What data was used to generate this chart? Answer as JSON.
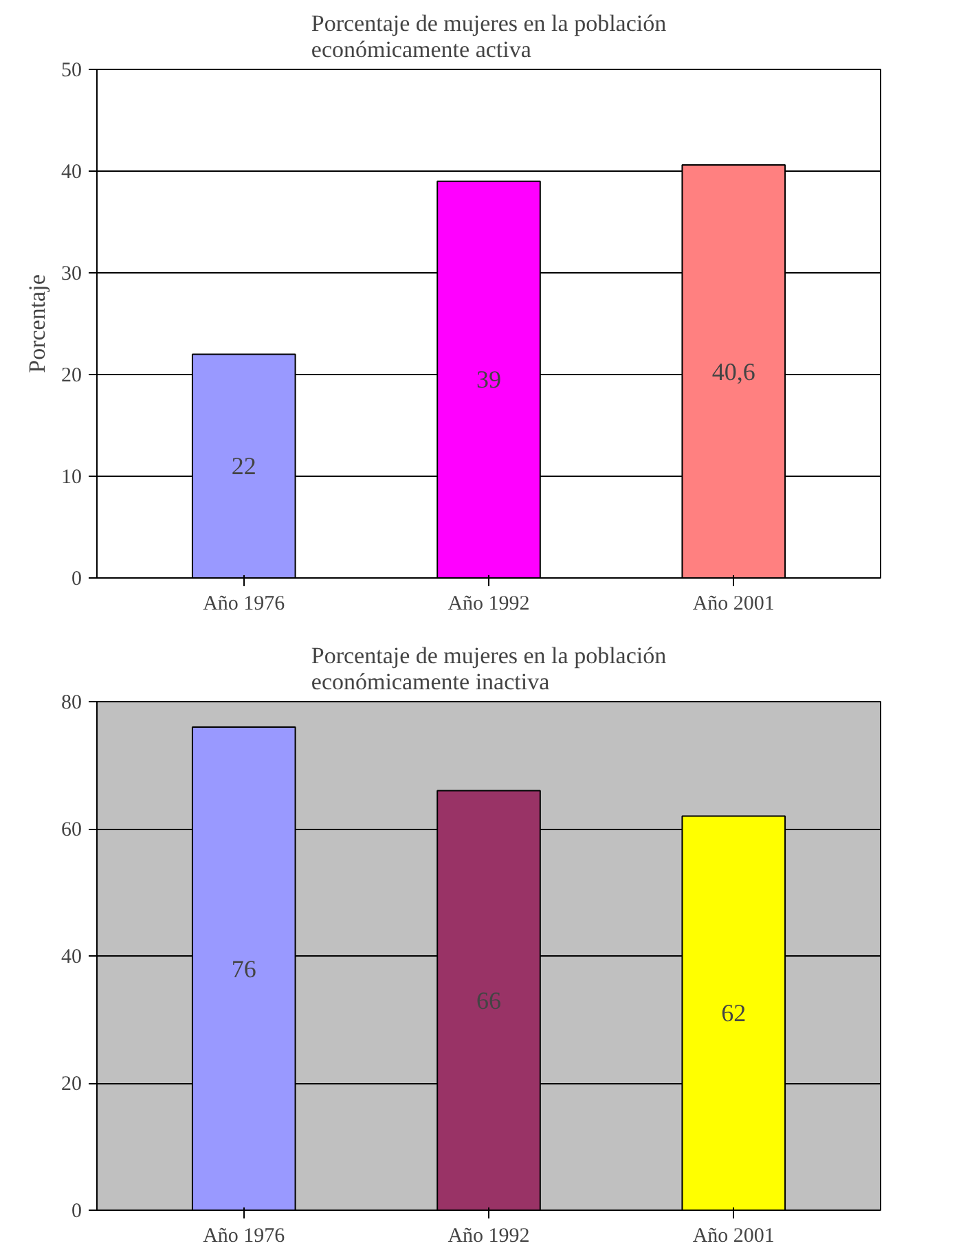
{
  "chart_data": [
    {
      "type": "bar",
      "title": "Porcentaje de mujeres en la población económicamente activa",
      "ylabel": "Porcentaje",
      "categories": [
        "Año 1976",
        "Año 1992",
        "Año 2001"
      ],
      "values": [
        22,
        39,
        40.6
      ],
      "value_labels": [
        "22",
        "39",
        "40,6"
      ],
      "colors": [
        "#9999ff",
        "#ff00ff",
        "#ff8080"
      ],
      "ylim": [
        0,
        50
      ],
      "yticks": [
        0,
        10,
        20,
        30,
        40,
        50
      ],
      "grid": "y"
    },
    {
      "type": "bar",
      "title": "Porcentaje de mujeres en la población económicamente inactiva",
      "categories": [
        "Año 1976",
        "Año 1992",
        "Año 2001"
      ],
      "values": [
        76,
        66,
        62
      ],
      "value_labels": [
        "76",
        "66",
        "62"
      ],
      "colors": [
        "#9999ff",
        "#993366",
        "#ffff00"
      ],
      "ylim": [
        0,
        80
      ],
      "yticks": [
        0,
        20,
        40,
        60,
        80
      ],
      "grid": "y"
    }
  ]
}
